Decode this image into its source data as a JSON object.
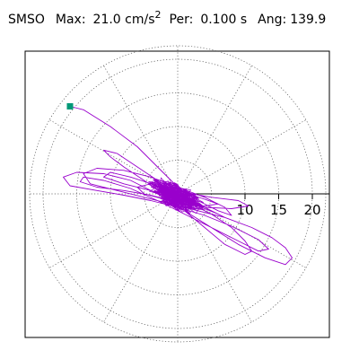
{
  "header": {
    "station": "SMSO",
    "max_label": "Max:",
    "max_value": "21.0 cm/s",
    "max_exponent": "2",
    "per_label": "Per:",
    "per_value": "0.100 s",
    "ang_label": "Ang:",
    "ang_value": "139.9"
  },
  "chart_data": {
    "type": "scatter",
    "subtype": "polar-particle-motion",
    "rmax": 22,
    "grid": {
      "rings": [
        5,
        10,
        15,
        20
      ],
      "spokes_deg": 30,
      "style": "dotted"
    },
    "axis": {
      "direction": "east",
      "tick_labels": [
        "10",
        "15",
        "20"
      ],
      "tick_values": [
        10,
        15,
        20
      ]
    },
    "trace_color": "#9900cc",
    "start_marker_color": "#009977",
    "start_point": {
      "x": -16.0,
      "y": 13.0
    },
    "trace_points": [
      [
        -16.0,
        13.0
      ],
      [
        -14.0,
        12.5
      ],
      [
        -10.0,
        10.0
      ],
      [
        -6.0,
        7.0
      ],
      [
        -3.0,
        4.0
      ],
      [
        0.0,
        1.0
      ],
      [
        3.0,
        -1.0
      ],
      [
        6.0,
        -2.5
      ],
      [
        8.0,
        -3.2
      ],
      [
        7.0,
        -2.0
      ],
      [
        4.0,
        -0.5
      ],
      [
        0.0,
        1.0
      ],
      [
        -4.0,
        2.5
      ],
      [
        -8.0,
        3.5
      ],
      [
        -12.0,
        3.8
      ],
      [
        -14.0,
        3.0
      ],
      [
        -13.0,
        1.5
      ],
      [
        -9.0,
        0.5
      ],
      [
        -5.0,
        -0.5
      ],
      [
        -1.0,
        -1.5
      ],
      [
        3.0,
        -2.5
      ],
      [
        7.0,
        -3.5
      ],
      [
        11.0,
        -5.0
      ],
      [
        14.0,
        -6.5
      ],
      [
        16.0,
        -8.0
      ],
      [
        17.0,
        -9.5
      ],
      [
        16.0,
        -10.5
      ],
      [
        13.0,
        -9.5
      ],
      [
        9.0,
        -7.5
      ],
      [
        5.0,
        -5.0
      ],
      [
        1.0,
        -2.5
      ],
      [
        -3.0,
        0.0
      ],
      [
        -7.0,
        2.0
      ],
      [
        -11.0,
        3.0
      ],
      [
        -15.0,
        3.2
      ],
      [
        -17.0,
        2.5
      ],
      [
        -16.0,
        1.2
      ],
      [
        -12.0,
        0.5
      ],
      [
        -8.0,
        -0.2
      ],
      [
        -4.0,
        -1.0
      ],
      [
        0.0,
        -2.0
      ],
      [
        4.0,
        -3.2
      ],
      [
        8.0,
        -4.8
      ],
      [
        12.0,
        -6.8
      ],
      [
        13.5,
        -8.2
      ],
      [
        12.0,
        -8.5
      ],
      [
        9.0,
        -7.0
      ],
      [
        5.0,
        -5.0
      ],
      [
        1.0,
        -3.0
      ],
      [
        -3.0,
        -1.0
      ],
      [
        -7.0,
        0.8
      ],
      [
        -11.0,
        2.0
      ],
      [
        -14.0,
        2.5
      ],
      [
        -14.5,
        1.8
      ],
      [
        -12.0,
        1.0
      ],
      [
        -8.0,
        0.5
      ],
      [
        -4.0,
        -0.2
      ],
      [
        0.0,
        -1.2
      ],
      [
        4.0,
        -2.0
      ],
      [
        8.0,
        -2.2
      ],
      [
        10.5,
        -1.8
      ],
      [
        9.0,
        -1.0
      ],
      [
        5.0,
        -0.5
      ],
      [
        1.0,
        0.2
      ],
      [
        -3.0,
        1.2
      ],
      [
        -7.0,
        2.5
      ],
      [
        -10.0,
        3.2
      ],
      [
        -11.0,
        2.5
      ],
      [
        -8.0,
        1.5
      ],
      [
        -4.0,
        0.5
      ],
      [
        -1.0,
        -0.5
      ],
      [
        2.0,
        -1.5
      ],
      [
        5.0,
        -3.0
      ],
      [
        8.0,
        -5.0
      ],
      [
        10.0,
        -7.0
      ],
      [
        11.0,
        -8.5
      ],
      [
        10.0,
        -9.0
      ],
      [
        7.0,
        -7.5
      ],
      [
        4.0,
        -5.0
      ],
      [
        1.0,
        -2.5
      ],
      [
        -2.0,
        0.0
      ],
      [
        -5.0,
        2.0
      ],
      [
        -8.0,
        4.0
      ],
      [
        -10.0,
        5.5
      ],
      [
        -11.0,
        6.5
      ],
      [
        -9.0,
        6.0
      ],
      [
        -6.0,
        4.0
      ],
      [
        -3.0,
        2.0
      ],
      [
        0.0,
        0.0
      ],
      [
        3.0,
        -1.8
      ],
      [
        6.0,
        -3.0
      ],
      [
        7.0,
        -3.5
      ],
      [
        5.0,
        -2.5
      ],
      [
        2.0,
        -1.0
      ],
      [
        -1.0,
        0.5
      ],
      [
        -4.0,
        1.5
      ],
      [
        -6.0,
        1.0
      ],
      [
        -5.0,
        0.0
      ],
      [
        -2.0,
        -0.8
      ],
      [
        1.0,
        -1.5
      ],
      [
        4.0,
        -1.8
      ],
      [
        6.0,
        -1.5
      ],
      [
        4.0,
        -0.8
      ],
      [
        1.0,
        0.2
      ],
      [
        -2.0,
        1.0
      ],
      [
        -3.0,
        0.5
      ],
      [
        -1.0,
        -0.5
      ],
      [
        1.5,
        -1.0
      ],
      [
        3.0,
        -0.5
      ],
      [
        1.0,
        0.5
      ],
      [
        -1.0,
        0.8
      ],
      [
        -2.0,
        0.0
      ],
      [
        -1.0,
        -1.0
      ],
      [
        0.5,
        -1.2
      ],
      [
        1.0,
        0.0
      ]
    ]
  }
}
